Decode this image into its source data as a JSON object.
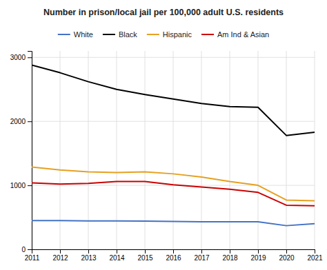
{
  "chart_data": {
    "type": "line",
    "title": "Number in prison/local jail per 100,000 adult U.S. residents",
    "x": [
      2011,
      2012,
      2013,
      2014,
      2015,
      2016,
      2017,
      2018,
      2019,
      2020,
      2021
    ],
    "series": [
      {
        "name": "White",
        "color": "#4472c4",
        "values": [
          450,
          450,
          445,
          445,
          440,
          435,
          430,
          430,
          430,
          370,
          400
        ]
      },
      {
        "name": "Black",
        "color": "#000000",
        "values": [
          2880,
          2760,
          2620,
          2500,
          2420,
          2350,
          2280,
          2230,
          2220,
          1780,
          1830
        ]
      },
      {
        "name": "Hispanic",
        "color": "#e6a020",
        "values": [
          1285,
          1240,
          1210,
          1200,
          1210,
          1180,
          1130,
          1060,
          1000,
          770,
          760
        ]
      },
      {
        "name": "Am Ind & Asian",
        "color": "#cc0000",
        "values": [
          1040,
          1020,
          1030,
          1060,
          1060,
          1010,
          975,
          940,
          890,
          690,
          680
        ]
      }
    ],
    "xlim": [
      2011,
      2021
    ],
    "xticks": [
      2011,
      2012,
      2013,
      2014,
      2015,
      2016,
      2017,
      2018,
      2019,
      2020,
      2021
    ],
    "ylim": [
      0,
      3100
    ],
    "yticks": [
      0,
      1000,
      2000,
      3000
    ],
    "grid": true,
    "legend": "top"
  }
}
